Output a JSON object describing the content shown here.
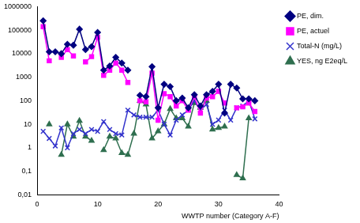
{
  "chart_data": {
    "type": "line",
    "x_label": "WWTP number (Category A-F)",
    "x": [
      1,
      2,
      3,
      4,
      5,
      6,
      7,
      8,
      9,
      10,
      11,
      12,
      13,
      14,
      15,
      16,
      17,
      18,
      19,
      20,
      21,
      22,
      23,
      24,
      25,
      26,
      27,
      28,
      29,
      30,
      31,
      32,
      33,
      34,
      35,
      36
    ],
    "xlim": [
      0,
      40
    ],
    "xticks": [
      0,
      10,
      20,
      30,
      40
    ],
    "ylim": [
      0.01,
      1000000
    ],
    "yticks": [
      {
        "value": 0.01,
        "label": "0,01"
      },
      {
        "value": 0.1,
        "label": "0,1"
      },
      1,
      10,
      100,
      1000,
      10000,
      100000,
      1000000
    ],
    "log": "y",
    "grid": false,
    "legend": "top right",
    "series": [
      {
        "name": "PE, dim.",
        "color": "#000080",
        "marker": "diamond",
        "line_style": "solid",
        "values": [
          250000,
          12000,
          12000,
          10000,
          25000,
          23000,
          110000,
          15000,
          20000,
          80000,
          2000,
          3000,
          7000,
          4000,
          2000,
          null,
          170,
          150,
          2800,
          50,
          500,
          400,
          100,
          130,
          50,
          180,
          60,
          180,
          250,
          500,
          30,
          500,
          350,
          120,
          120,
          100
        ]
      },
      {
        "name": "PE, actuel",
        "color": "#ff00ff",
        "marker": "square",
        "line_style": "solid",
        "values": [
          140000,
          5000,
          null,
          7000,
          15000,
          8000,
          null,
          4500,
          7500,
          50000,
          1200,
          2000,
          4000,
          2000,
          600,
          null,
          100,
          90,
          1500,
          15,
          200,
          150,
          60,
          100,
          40,
          150,
          30,
          130,
          150,
          250,
          80,
          null,
          50,
          55,
          80,
          35
        ]
      },
      {
        "name": "Total-N (mg/L)",
        "color": "#3333cc",
        "marker": "x",
        "line_style": "solid",
        "values": [
          5,
          2.5,
          1.2,
          7,
          1,
          4,
          6,
          4,
          6,
          5,
          13,
          6,
          4,
          3.5,
          40,
          25,
          20,
          20,
          20,
          40,
          10,
          3.5,
          15,
          25,
          40,
          100,
          40,
          70,
          10,
          15,
          40,
          15,
          50,
          60,
          100,
          17
        ]
      },
      {
        "name": "YES, ng E2eq/L",
        "color": "#2f6f4f",
        "marker": "triangle",
        "line_style": "solid",
        "values": [
          null,
          10,
          null,
          0.5,
          10,
          3,
          14,
          3,
          2,
          null,
          0.8,
          3,
          2.5,
          0.6,
          0.5,
          4,
          100,
          70,
          2.5,
          5,
          10,
          45,
          18,
          18,
          8,
          80,
          50,
          100,
          6,
          7,
          8,
          null,
          0.07,
          0.05,
          18,
          null
        ]
      }
    ]
  }
}
